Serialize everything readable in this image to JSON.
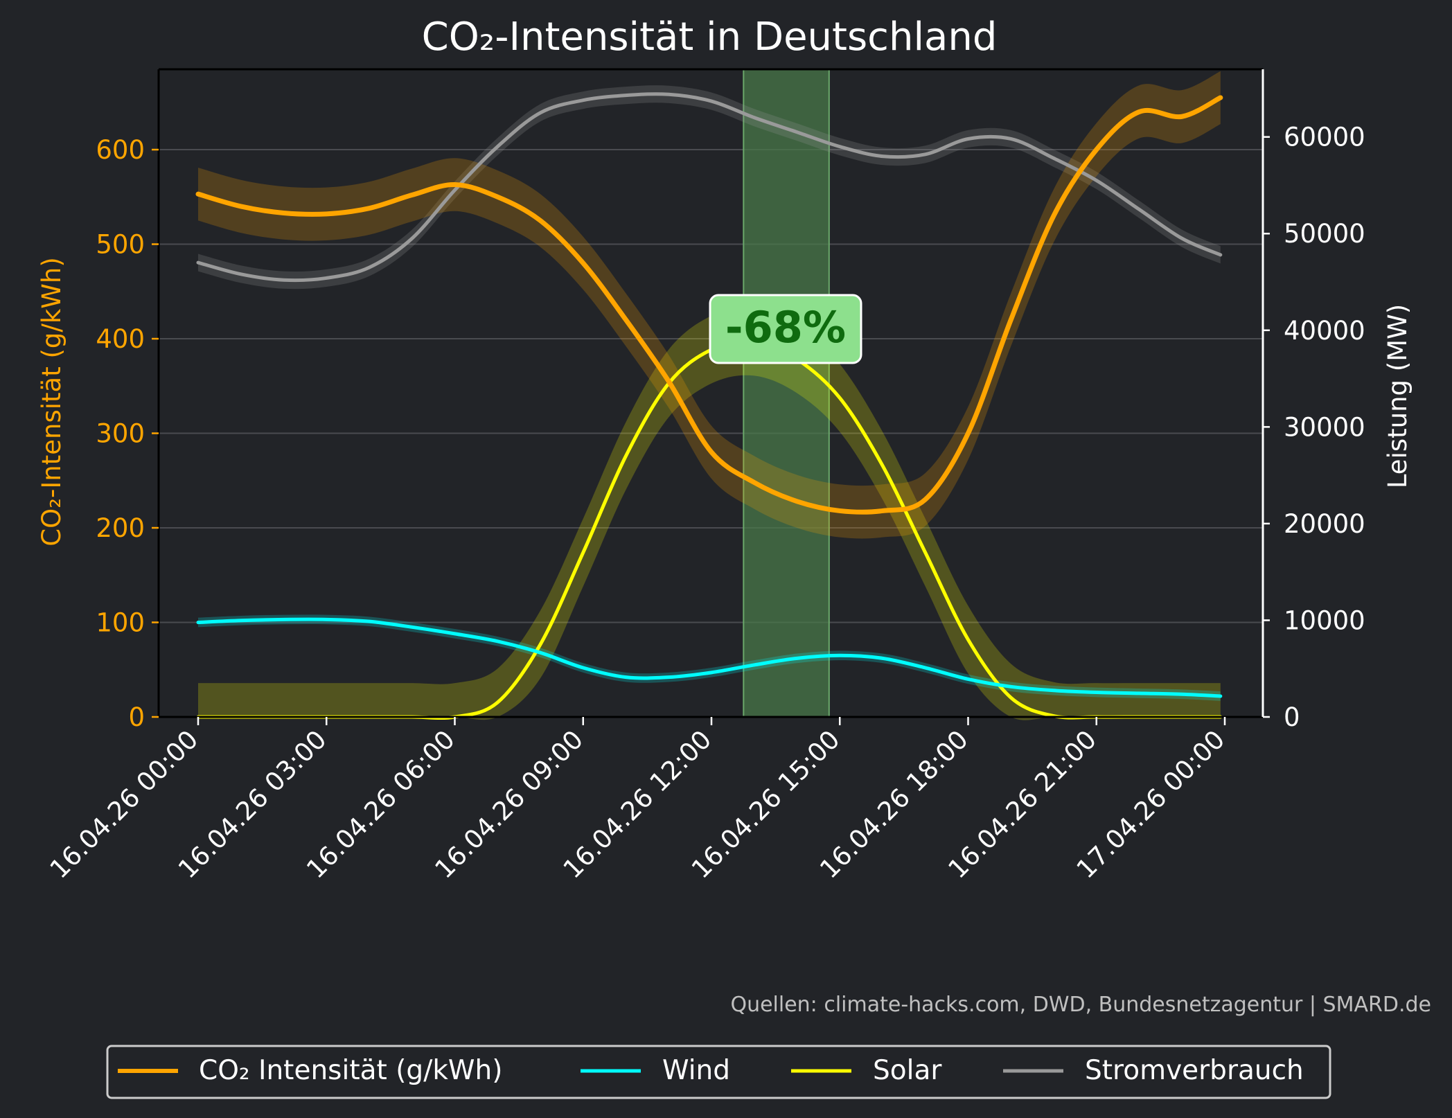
{
  "chart_data": {
    "type": "line",
    "title": "CO₂-Intensität in Deutschland",
    "ylabel_left": "CO₂-Intensität (g/kWh)",
    "ylabel_right": "Leistung (MW)",
    "ylim_left": [
      0,
      685
    ],
    "ylim_right": [
      0,
      67000
    ],
    "yticks_left": [
      "0",
      "100",
      "200",
      "300",
      "400",
      "500",
      "600"
    ],
    "yticks_right": [
      "0",
      "10000",
      "20000",
      "30000",
      "40000",
      "50000",
      "60000"
    ],
    "xticks": [
      "16.04.26 00:00",
      "16.04.26 03:00",
      "16.04.26 06:00",
      "16.04.26 09:00",
      "16.04.26 12:00",
      "16.04.26 15:00",
      "16.04.26 18:00",
      "16.04.26 21:00",
      "17.04.26 00:00"
    ],
    "x_hours": [
      0,
      1,
      2,
      3,
      4,
      5,
      6,
      7,
      8,
      9,
      10,
      11,
      12,
      13,
      14,
      15,
      16,
      17,
      18,
      19,
      20,
      21,
      22,
      23,
      23.9
    ],
    "grid": "horizontal",
    "legend_position": "bottom",
    "highlight": {
      "x_start_hours": 12.75,
      "x_end_hours": 14.75,
      "color": "#4a7a4a"
    },
    "annotation": {
      "text": "-68%",
      "x_hours": 13.75,
      "y_left": 398
    },
    "source_note": "Quellen: climate-hacks.com, DWD, Bundesnetzagentur | SMARD.de",
    "series": [
      {
        "name": "CO₂ Intensität (g/kWh)",
        "axis": "left",
        "color": "#ffa500",
        "band": 28,
        "values": [
          553,
          540,
          533,
          532,
          538,
          552,
          563,
          550,
          525,
          480,
          420,
          355,
          280,
          248,
          228,
          218,
          218,
          230,
          300,
          420,
          530,
          600,
          640,
          635,
          655
        ]
      },
      {
        "name": "Wind",
        "axis": "left",
        "color": "#00ffff",
        "band": 5,
        "values": [
          100,
          102,
          103,
          103,
          101,
          95,
          88,
          80,
          68,
          52,
          42,
          42,
          47,
          55,
          62,
          65,
          62,
          52,
          40,
          32,
          28,
          26,
          25,
          24,
          22
        ]
      },
      {
        "name": "Solar",
        "axis": "right",
        "color": "#ffff00",
        "band": 3500,
        "values": [
          0,
          0,
          0,
          0,
          0,
          0,
          0,
          1500,
          7500,
          17000,
          27000,
          34500,
          38000,
          38800,
          37000,
          33000,
          26000,
          17000,
          8000,
          2000,
          100,
          0,
          0,
          0,
          0
        ]
      },
      {
        "name": "Stromverbrauch",
        "axis": "right",
        "color": "#9a9a9a",
        "band": 900,
        "values": [
          47000,
          45800,
          45200,
          45400,
          46500,
          49500,
          54500,
          59000,
          62500,
          63800,
          64300,
          64400,
          63700,
          62000,
          60500,
          59000,
          58000,
          58200,
          59800,
          59800,
          57800,
          55500,
          52500,
          49500,
          47800
        ]
      }
    ]
  }
}
